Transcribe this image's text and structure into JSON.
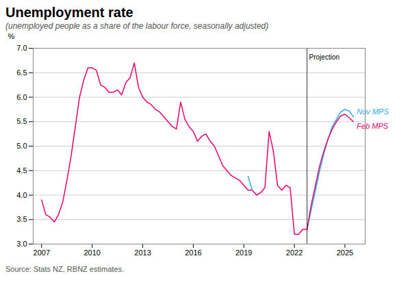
{
  "chart_data": {
    "type": "line",
    "title": "Unemployment rate",
    "subtitle": "(unemployed people as a share of the labour force, seasonally adjusted)",
    "ylabel": "%",
    "source": "Source: Stats NZ, RBNZ estimates.",
    "xlim": [
      2006.5,
      2026.2
    ],
    "xticks": [
      2007,
      2010,
      2013,
      2016,
      2019,
      2022,
      2025
    ],
    "ylim": [
      3.0,
      7.0
    ],
    "yticks": [
      {
        "value": 3.0,
        "label": "3.0"
      },
      3.5,
      {
        "value": 4.0,
        "label": "4.0"
      },
      4.5,
      {
        "value": 5.0,
        "label": "5.0"
      },
      5.5,
      {
        "value": 6.0,
        "label": "6.0"
      },
      6.5,
      {
        "value": 7.0,
        "label": "7.0"
      }
    ],
    "grid": true,
    "series": [
      {
        "color": "#E8006F",
        "x": [
          2007.0,
          2007.25,
          2007.5,
          2007.75,
          2008.0,
          2008.25,
          2008.5,
          2008.75,
          2009.0,
          2009.25,
          2009.5,
          2009.75,
          2010.0,
          2010.25,
          2010.5,
          2010.75,
          2011.0,
          2011.25,
          2011.5,
          2011.75,
          2012.0,
          2012.25,
          2012.5,
          2012.75,
          2013.0,
          2013.25,
          2013.5,
          2013.75,
          2014.0,
          2014.25,
          2014.5,
          2014.75,
          2015.0,
          2015.25,
          2015.5,
          2015.75,
          2016.0,
          2016.25,
          2016.5,
          2016.75,
          2017.0,
          2017.25,
          2017.5,
          2017.75,
          2018.0,
          2018.25,
          2018.5,
          2018.75,
          2019.0,
          2019.25,
          2019.5,
          2019.75,
          2020.0,
          2020.25,
          2020.5,
          2020.75,
          2021.0,
          2021.25,
          2021.5,
          2021.75,
          2022.0,
          2022.25,
          2022.5,
          2022.75
        ],
        "values": [
          3.9,
          3.6,
          3.55,
          3.45,
          3.6,
          3.85,
          4.3,
          4.8,
          5.4,
          6.0,
          6.35,
          6.6,
          6.6,
          6.55,
          6.25,
          6.2,
          6.1,
          6.1,
          6.15,
          6.05,
          6.3,
          6.4,
          6.7,
          6.2,
          6.0,
          5.9,
          5.85,
          5.75,
          5.7,
          5.6,
          5.5,
          5.4,
          5.35,
          5.9,
          5.55,
          5.4,
          5.3,
          5.1,
          5.2,
          5.25,
          5.1,
          5.0,
          4.8,
          4.6,
          4.5,
          4.4,
          4.35,
          4.3,
          4.2,
          4.1,
          4.1,
          4.0,
          4.05,
          4.15,
          5.3,
          4.9,
          4.2,
          4.1,
          4.2,
          4.15,
          3.2,
          3.2,
          3.3,
          3.3
        ]
      },
      {
        "color": "#29ABE2",
        "x": [
          2019.25,
          2019.5
        ],
        "values": [
          4.38,
          4.1
        ]
      },
      {
        "name": "Nov MPS",
        "color": "#29ABE2",
        "x": [
          2022.75,
          2023.0,
          2023.25,
          2023.5,
          2023.75,
          2024.0,
          2024.25,
          2024.5,
          2024.75,
          2025.0,
          2025.25,
          2025.5
        ],
        "values": [
          3.3,
          3.7,
          4.1,
          4.5,
          4.85,
          5.15,
          5.4,
          5.55,
          5.7,
          5.75,
          5.72,
          5.6
        ]
      },
      {
        "name": "Feb MPS",
        "color": "#E8006F",
        "x": [
          2022.75,
          2023.0,
          2023.25,
          2023.5,
          2023.75,
          2024.0,
          2024.25,
          2024.5,
          2024.75,
          2025.0,
          2025.25,
          2025.5
        ],
        "values": [
          3.3,
          3.8,
          4.2,
          4.6,
          4.9,
          5.15,
          5.35,
          5.5,
          5.62,
          5.65,
          5.58,
          5.5
        ]
      }
    ],
    "annotations": [
      {
        "x": 2022.75,
        "text": "Projection"
      }
    ]
  }
}
